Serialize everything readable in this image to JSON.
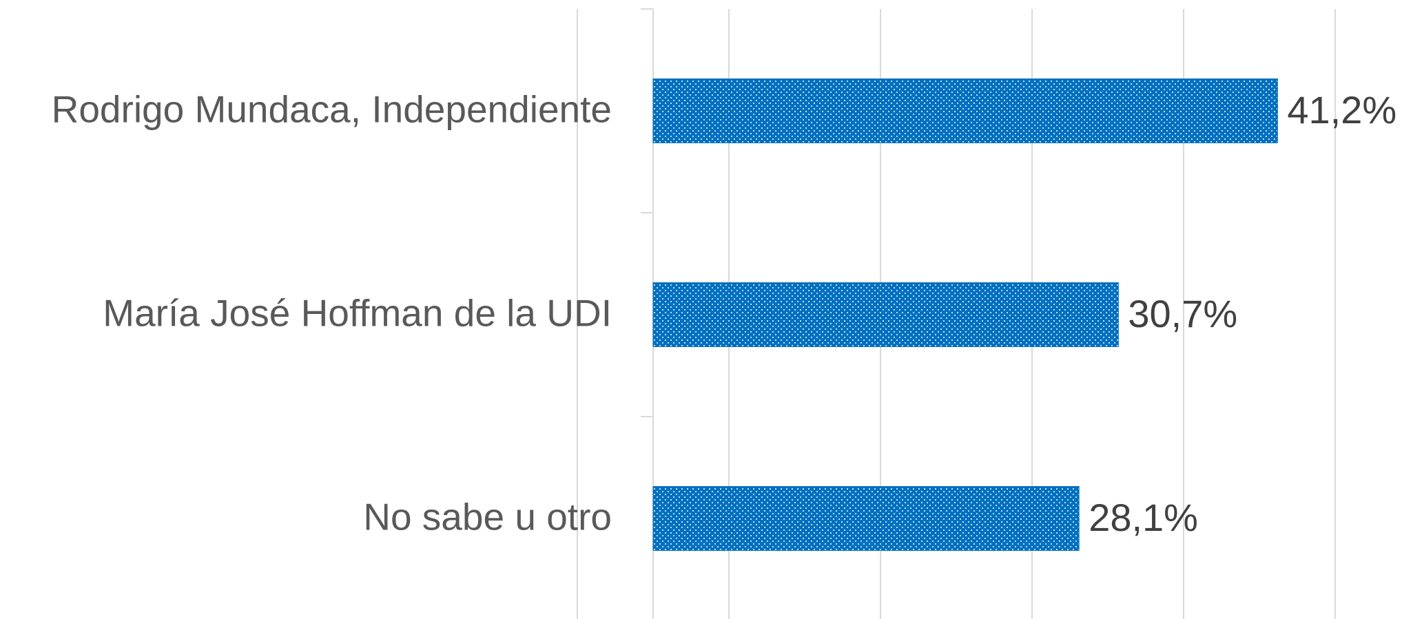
{
  "chart_data": {
    "type": "bar",
    "orientation": "horizontal",
    "categories": [
      "Rodrigo Mundaca, Independiente",
      "María José Hoffman de la UDI",
      "No sabe u otro"
    ],
    "values": [
      41.2,
      30.7,
      28.1
    ],
    "value_labels": [
      "41,2%",
      "30,7%",
      "28,1%"
    ],
    "color": "#0070c0",
    "xlim": [
      -5,
      45
    ],
    "xticks": [
      -5,
      5,
      15,
      25,
      35,
      45
    ],
    "grid": true
  }
}
